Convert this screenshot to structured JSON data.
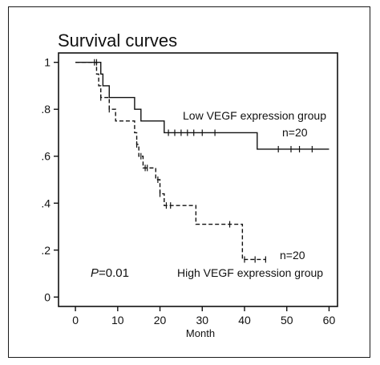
{
  "chart_data": {
    "type": "line",
    "subtype": "kaplan-meier step curves",
    "title": "Survival curves",
    "xlabel": "Month",
    "ylabel": "",
    "xlim": [
      -4,
      62
    ],
    "ylim": [
      -0.04,
      1.04
    ],
    "x_ticks": [
      0,
      10,
      20,
      30,
      40,
      50,
      60
    ],
    "x_tick_labels": [
      "0",
      "10",
      "20",
      "30",
      "40",
      "50",
      "60"
    ],
    "y_ticks": [
      0,
      0.2,
      0.4,
      0.6,
      0.8,
      1.0
    ],
    "y_tick_labels": [
      "0",
      ".2",
      ".4",
      ".6",
      ".8",
      "1"
    ],
    "grid": false,
    "series": [
      {
        "name": "Low VEGF expression group",
        "n_label": "n=20",
        "line_style": "solid",
        "color": "#111111",
        "steps": [
          [
            0,
            1.0
          ],
          [
            6,
            0.95
          ],
          [
            6.5,
            0.9
          ],
          [
            8,
            0.85
          ],
          [
            14,
            0.8
          ],
          [
            15.5,
            0.75
          ],
          [
            21,
            0.7
          ],
          [
            43,
            0.63
          ],
          [
            60,
            0.63
          ]
        ],
        "censor_x": [
          5,
          22,
          23.5,
          25,
          26.5,
          28,
          30,
          33,
          48,
          51,
          53,
          56
        ]
      },
      {
        "name": "High VEGF expression group",
        "n_label": "n=20",
        "line_style": "dashed",
        "color": "#111111",
        "steps": [
          [
            0,
            1.0
          ],
          [
            5,
            0.95
          ],
          [
            5.5,
            0.9
          ],
          [
            6,
            0.85
          ],
          [
            8,
            0.8
          ],
          [
            9.5,
            0.75
          ],
          [
            14,
            0.7
          ],
          [
            14.5,
            0.65
          ],
          [
            15,
            0.6
          ],
          [
            16,
            0.55
          ],
          [
            19,
            0.5
          ],
          [
            20,
            0.44
          ],
          [
            21,
            0.39
          ],
          [
            28.5,
            0.31
          ],
          [
            39.5,
            0.16
          ],
          [
            45,
            0.16
          ]
        ],
        "censor_x": [
          4.5,
          6,
          8,
          14.5,
          15.5,
          16.5,
          17,
          19.5,
          20,
          21.5,
          22.5,
          36.5,
          40,
          42.5,
          45
        ]
      }
    ],
    "annotations": {
      "p_value_prefix": "P",
      "p_value_rest": "=0.01"
    }
  }
}
